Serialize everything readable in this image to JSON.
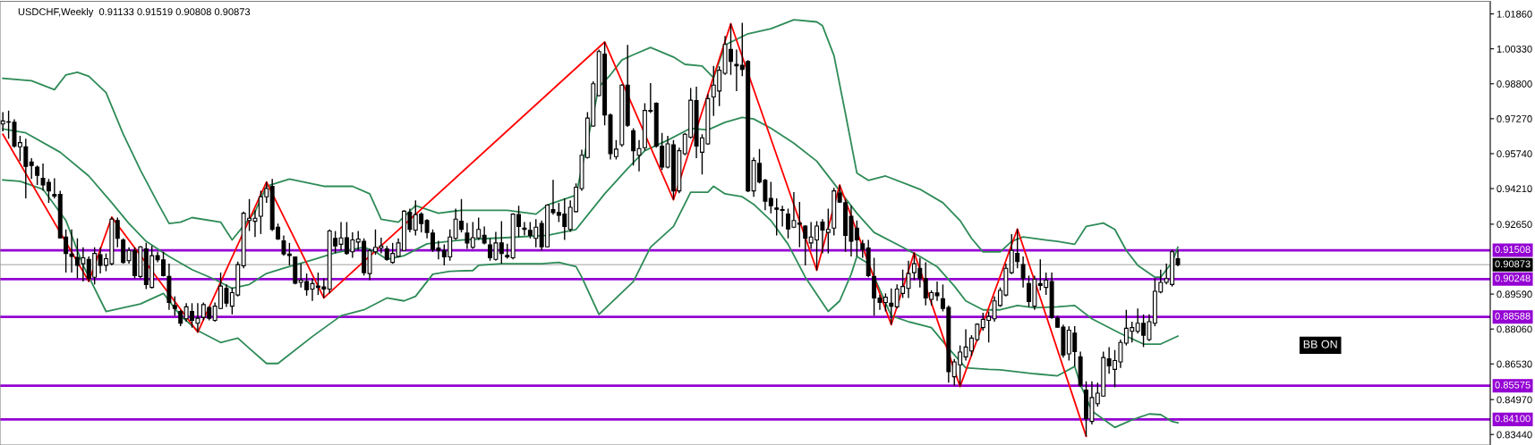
{
  "chart_data": {
    "type": "candlestick",
    "title": "USDCHF,Weekly  0.91133 0.91519 0.90808 0.90873",
    "color": "#000000",
    "categories": [
      null,
      null,
      null,
      null,
      null,
      null,
      null,
      null,
      null,
      null,
      null,
      null,
      null,
      null,
      null,
      null,
      null,
      null,
      null,
      null,
      null,
      null,
      null,
      null,
      null,
      null,
      null,
      null,
      null,
      null,
      null,
      null,
      null,
      null,
      null,
      null,
      null,
      null,
      null,
      null,
      null,
      null,
      null,
      null,
      null,
      null,
      null,
      null,
      null,
      null,
      null,
      null,
      null,
      null,
      null,
      null,
      null,
      null,
      null,
      null,
      null,
      null,
      null,
      null,
      null,
      null,
      null,
      null,
      null,
      null,
      null,
      null,
      null,
      null,
      null,
      null,
      null,
      null,
      null,
      null,
      null,
      null,
      null,
      null,
      null,
      null,
      null,
      null,
      null,
      null,
      null,
      null,
      null,
      null,
      null,
      null,
      null,
      null,
      null,
      null,
      null,
      null,
      null,
      null,
      null,
      null,
      null,
      null,
      null,
      null,
      null,
      null,
      null,
      null,
      null,
      null,
      null,
      null,
      null,
      null,
      null,
      null,
      null,
      null,
      null,
      null,
      null,
      null,
      null,
      null,
      null,
      null,
      null,
      null,
      null,
      null,
      null,
      null,
      null,
      null,
      null,
      null,
      null,
      null,
      null,
      null,
      null,
      null,
      null,
      null,
      null,
      null,
      null,
      null,
      null,
      null,
      null,
      null,
      null,
      null,
      null,
      null,
      null,
      null,
      null,
      null,
      null,
      null,
      null,
      null,
      null,
      null,
      null,
      null,
      null,
      null,
      null,
      null,
      null,
      null,
      null,
      null,
      null,
      null,
      null,
      null,
      null,
      null,
      null,
      null,
      null,
      null,
      null,
      null,
      null,
      null,
      null,
      null,
      null,
      null,
      null,
      null,
      null,
      null,
      null,
      null,
      null,
      null,
      null,
      null,
      null,
      null,
      null,
      null,
      null,
      null,
      null,
      null,
      null,
      null,
      null,
      null,
      null,
      null,
      null,
      null,
      null,
      null,
      null,
      null,
      null,
      null,
      null,
      null,
      null,
      null,
      null,
      null,
      null,
      null,
      null,
      null,
      null,
      null,
      null,
      null,
      null,
      null,
      null,
      null,
      null,
      null,
      null,
      null,
      null,
      null,
      null,
      null,
      null,
      null
    ],
    "ohlc": [
      [
        0.9704,
        0.9756,
        0.9672,
        0.9717
      ],
      [
        0.9713,
        0.9763,
        0.9639,
        0.9712
      ],
      [
        0.9711,
        0.9724,
        0.96,
        0.9607
      ],
      [
        0.9604,
        0.9652,
        0.9541,
        0.9622
      ],
      [
        0.9604,
        0.9639,
        0.9378,
        0.9518
      ],
      [
        0.9537,
        0.9554,
        0.9463,
        0.9522
      ],
      [
        0.9515,
        0.9522,
        0.9437,
        0.9479
      ],
      [
        0.9466,
        0.9531,
        0.9411,
        0.9437
      ],
      [
        0.9448,
        0.9463,
        0.9359,
        0.9411
      ],
      [
        0.9395,
        0.9466,
        0.9378,
        0.9388
      ],
      [
        0.9395,
        0.9411,
        0.9203,
        0.9205
      ],
      [
        0.9209,
        0.9242,
        0.9053,
        0.9137
      ],
      [
        0.9134,
        0.9242,
        0.9053,
        0.9124
      ],
      [
        0.912,
        0.9203,
        0.9027,
        0.9085
      ],
      [
        0.9092,
        0.9164,
        0.9014,
        0.9118
      ],
      [
        0.9111,
        0.9124,
        0.9014,
        0.9027
      ],
      [
        0.9033,
        0.9164,
        0.9001,
        0.9137
      ],
      [
        0.9131,
        0.9164,
        0.9049,
        0.9085
      ],
      [
        0.9085,
        0.9137,
        0.9059,
        0.9114
      ],
      [
        0.9092,
        0.9296,
        0.9085,
        0.9287
      ],
      [
        0.9281,
        0.9294,
        0.9164,
        0.9203
      ],
      [
        0.9196,
        0.9203,
        0.9092,
        0.9098
      ],
      [
        0.9105,
        0.9164,
        0.9092,
        0.915
      ],
      [
        0.915,
        0.9164,
        0.9027,
        0.904
      ],
      [
        0.9036,
        0.917,
        0.9027,
        0.9166
      ],
      [
        0.9157,
        0.9183,
        0.8981,
        0.9001
      ],
      [
        0.8988,
        0.917,
        0.8984,
        0.9127
      ],
      [
        0.9127,
        0.9144,
        0.9098,
        0.9109
      ],
      [
        0.9109,
        0.9144,
        0.9036,
        0.904
      ],
      [
        0.9036,
        0.9092,
        0.889,
        0.8922
      ],
      [
        0.8909,
        0.8949,
        0.8864,
        0.8896
      ],
      [
        0.8883,
        0.889,
        0.8818,
        0.8831
      ],
      [
        0.8851,
        0.8919,
        0.8838,
        0.8903
      ],
      [
        0.8883,
        0.8919,
        0.8812,
        0.8844
      ],
      [
        0.8831,
        0.8919,
        0.8792,
        0.8853
      ],
      [
        0.8857,
        0.8922,
        0.8844,
        0.8913
      ],
      [
        0.89,
        0.8906,
        0.8844,
        0.8853
      ],
      [
        0.8844,
        0.8922,
        0.8838,
        0.8906
      ],
      [
        0.8896,
        0.9053,
        0.8893,
        0.8994
      ],
      [
        0.8984,
        0.9001,
        0.8903,
        0.8919
      ],
      [
        0.8906,
        0.8988,
        0.887,
        0.8965
      ],
      [
        0.8955,
        0.9101,
        0.8949,
        0.9088
      ],
      [
        0.9083,
        0.932,
        0.9072,
        0.9313
      ],
      [
        0.9281,
        0.9375,
        0.9235,
        0.9291
      ],
      [
        0.9278,
        0.9326,
        0.9209,
        0.9291
      ],
      [
        0.93,
        0.9411,
        0.9222,
        0.9385
      ],
      [
        0.9385,
        0.945,
        0.9359,
        0.9421
      ],
      [
        0.9431,
        0.9463,
        0.9235,
        0.9242
      ],
      [
        0.9252,
        0.9268,
        0.9196,
        0.92
      ],
      [
        0.9192,
        0.9216,
        0.9127,
        0.9135
      ],
      [
        0.9134,
        0.9183,
        0.9085,
        0.9128
      ],
      [
        0.9122,
        0.9124,
        0.9001,
        0.9007
      ],
      [
        0.901,
        0.9092,
        0.8988,
        0.902
      ],
      [
        0.9014,
        0.9049,
        0.8952,
        0.8978
      ],
      [
        0.8981,
        0.9027,
        0.8929,
        0.9005
      ],
      [
        0.8994,
        0.9053,
        0.8955,
        0.8988
      ],
      [
        0.899,
        0.9027,
        0.8942,
        0.8981
      ],
      [
        0.8981,
        0.9242,
        0.8962,
        0.9235
      ],
      [
        0.9203,
        0.9235,
        0.9137,
        0.917
      ],
      [
        0.9177,
        0.9274,
        0.915,
        0.9205
      ],
      [
        0.9206,
        0.9274,
        0.9131,
        0.9137
      ],
      [
        0.9144,
        0.9229,
        0.9118,
        0.9196
      ],
      [
        0.9187,
        0.9235,
        0.915,
        0.92
      ],
      [
        0.919,
        0.9203,
        0.904,
        0.9053
      ],
      [
        0.9049,
        0.9157,
        0.902,
        0.9148
      ],
      [
        0.9144,
        0.9242,
        0.9131,
        0.9164
      ],
      [
        0.9161,
        0.9206,
        0.9137,
        0.9169
      ],
      [
        0.9157,
        0.917,
        0.9105,
        0.9111
      ],
      [
        0.9098,
        0.9183,
        0.9092,
        0.9137
      ],
      [
        0.9124,
        0.9203,
        0.9122,
        0.9183
      ],
      [
        0.915,
        0.9326,
        0.9148,
        0.9322
      ],
      [
        0.9317,
        0.9333,
        0.9229,
        0.9242
      ],
      [
        0.9239,
        0.9369,
        0.9216,
        0.9307
      ],
      [
        0.9309,
        0.9317,
        0.9229,
        0.9268
      ],
      [
        0.9281,
        0.9287,
        0.9203,
        0.9229
      ],
      [
        0.9226,
        0.9242,
        0.9144,
        0.9153
      ],
      [
        0.9161,
        0.9192,
        0.9111,
        0.915
      ],
      [
        0.915,
        0.9177,
        0.9085,
        0.9122
      ],
      [
        0.9122,
        0.9242,
        0.9105,
        0.9209
      ],
      [
        0.9203,
        0.9333,
        0.9196,
        0.9287
      ],
      [
        0.9278,
        0.9375,
        0.9229,
        0.9242
      ],
      [
        0.9226,
        0.927,
        0.9157,
        0.9183
      ],
      [
        0.9164,
        0.9274,
        0.9157,
        0.9206
      ],
      [
        0.9205,
        0.9294,
        0.9196,
        0.9242
      ],
      [
        0.9216,
        0.9255,
        0.9177,
        0.9183
      ],
      [
        0.9174,
        0.9203,
        0.9105,
        0.9118
      ],
      [
        0.9111,
        0.9231,
        0.9105,
        0.9183
      ],
      [
        0.9183,
        0.9278,
        0.9092,
        0.9137
      ],
      [
        0.9128,
        0.9179,
        0.9114,
        0.9122
      ],
      [
        0.9118,
        0.9313,
        0.9111,
        0.9309
      ],
      [
        0.9307,
        0.9346,
        0.9209,
        0.9255
      ],
      [
        0.9248,
        0.9274,
        0.9216,
        0.9242
      ],
      [
        0.9238,
        0.9274,
        0.9203,
        0.9216
      ],
      [
        0.9203,
        0.9287,
        0.9164,
        0.9252
      ],
      [
        0.9268,
        0.9281,
        0.915,
        0.9166
      ],
      [
        0.9166,
        0.9352,
        0.9164,
        0.9349
      ],
      [
        0.9329,
        0.9459,
        0.9307,
        0.9316
      ],
      [
        0.9316,
        0.9359,
        0.9274,
        0.9304
      ],
      [
        0.9309,
        0.9378,
        0.9196,
        0.9255
      ],
      [
        0.9242,
        0.9369,
        0.9231,
        0.9339
      ],
      [
        0.932,
        0.9444,
        0.9317,
        0.9427
      ],
      [
        0.9421,
        0.9591,
        0.9411,
        0.9567
      ],
      [
        0.9557,
        0.9756,
        0.9552,
        0.973
      ],
      [
        0.9695,
        0.9891,
        0.9691,
        0.988
      ],
      [
        0.9828,
        1.003,
        0.9825,
        1.0021
      ],
      [
        1.001,
        1.0063,
        0.9698,
        0.9743
      ],
      [
        0.9743,
        0.975,
        0.9548,
        0.9574
      ],
      [
        0.9561,
        0.9633,
        0.9548,
        0.9594
      ],
      [
        0.9613,
        0.9878,
        0.9604,
        0.9874
      ],
      [
        0.9874,
        1.005,
        0.9691,
        0.9698
      ],
      [
        0.9674,
        0.9685,
        0.9522,
        0.9587
      ],
      [
        0.9567,
        0.9633,
        0.9496,
        0.9596
      ],
      [
        0.96,
        0.9795,
        0.9587,
        0.9763
      ],
      [
        0.9763,
        0.9883,
        0.9752,
        0.976
      ],
      [
        0.9795,
        0.9799,
        0.96,
        0.9607
      ],
      [
        0.9607,
        0.9665,
        0.9502,
        0.9515
      ],
      [
        0.9515,
        0.9652,
        0.9509,
        0.9617
      ],
      [
        0.9613,
        0.9633,
        0.9372,
        0.9411
      ],
      [
        0.9411,
        0.96,
        0.9401,
        0.9587
      ],
      [
        0.9574,
        0.9665,
        0.9567,
        0.9659
      ],
      [
        0.9646,
        0.9861,
        0.9639,
        0.9808
      ],
      [
        0.9806,
        0.9867,
        0.9554,
        0.9607
      ],
      [
        0.958,
        0.9659,
        0.9483,
        0.9643
      ],
      [
        0.9617,
        0.9835,
        0.9613,
        0.9815
      ],
      [
        0.9822,
        0.9958,
        0.9739,
        0.9874
      ],
      [
        0.9848,
        0.9956,
        0.9782,
        0.9939
      ],
      [
        0.9926,
        1.0089,
        0.9919,
        1.0052
      ],
      [
        1.003,
        1.0143,
        0.9919,
        0.9978
      ],
      [
        0.9965,
        1.003,
        0.9848,
        0.9958
      ],
      [
        0.9961,
        1.0147,
        0.9913,
        0.9943
      ],
      [
        0.9978,
        0.9984,
        0.9405,
        0.9411
      ],
      [
        0.9411,
        0.9557,
        0.9385,
        0.9544
      ],
      [
        0.9531,
        0.9594,
        0.9444,
        0.945
      ],
      [
        0.9457,
        0.9463,
        0.9326,
        0.9366
      ],
      [
        0.9378,
        0.945,
        0.9313,
        0.9346
      ],
      [
        0.9336,
        0.9378,
        0.9216,
        0.933
      ],
      [
        0.9329,
        0.9346,
        0.9255,
        0.9325
      ],
      [
        0.9309,
        0.9333,
        0.9203,
        0.9244
      ],
      [
        0.9252,
        0.9405,
        0.9248,
        0.9281
      ],
      [
        0.927,
        0.9362,
        0.9164,
        0.9265
      ],
      [
        0.9257,
        0.9261,
        0.9085,
        0.9203
      ],
      [
        0.9183,
        0.9274,
        0.9157,
        0.9209
      ],
      [
        0.9196,
        0.9278,
        0.9063,
        0.9257
      ],
      [
        0.9274,
        0.9287,
        0.9137,
        0.9239
      ],
      [
        0.9229,
        0.9333,
        0.9137,
        0.9242
      ],
      [
        0.9248,
        0.9424,
        0.9216,
        0.9411
      ],
      [
        0.9401,
        0.9437,
        0.9359,
        0.9362
      ],
      [
        0.9359,
        0.9372,
        0.9144,
        0.9216
      ],
      [
        0.93,
        0.9346,
        0.9124,
        0.919
      ],
      [
        0.9248,
        0.9281,
        0.9124,
        0.9196
      ],
      [
        0.9179,
        0.9196,
        0.9118,
        0.9153
      ],
      [
        0.9161,
        0.9196,
        0.9033,
        0.904
      ],
      [
        0.9036,
        0.9118,
        0.8864,
        0.8942
      ],
      [
        0.8942,
        0.8955,
        0.889,
        0.8922
      ],
      [
        0.8922,
        0.8962,
        0.8883,
        0.8945
      ],
      [
        0.8919,
        0.8984,
        0.8825,
        0.8906
      ],
      [
        0.8903,
        0.9001,
        0.8896,
        0.8981
      ],
      [
        0.8962,
        0.9066,
        0.8942,
        0.8992
      ],
      [
        0.8984,
        0.9105,
        0.8942,
        0.9049
      ],
      [
        0.9053,
        0.914,
        0.902,
        0.9092
      ],
      [
        0.9072,
        0.9118,
        0.8988,
        0.9027
      ],
      [
        0.9027,
        0.9098,
        0.8909,
        0.8942
      ],
      [
        0.8936,
        0.8975,
        0.8909,
        0.8965
      ],
      [
        0.8964,
        0.9014,
        0.8929,
        0.8952
      ],
      [
        0.8939,
        0.9001,
        0.8883,
        0.8896
      ],
      [
        0.89,
        0.8909,
        0.8571,
        0.8619
      ],
      [
        0.8597,
        0.8675,
        0.8558,
        0.8662
      ],
      [
        0.8649,
        0.8734,
        0.8554,
        0.8705
      ],
      [
        0.8684,
        0.8805,
        0.8668,
        0.8727
      ],
      [
        0.871,
        0.8779,
        0.8688,
        0.8766
      ],
      [
        0.876,
        0.8831,
        0.8753,
        0.8827
      ],
      [
        0.8812,
        0.8877,
        0.8799,
        0.8848
      ],
      [
        0.8844,
        0.8883,
        0.8747,
        0.8861
      ],
      [
        0.8851,
        0.8949,
        0.8838,
        0.8929
      ],
      [
        0.8909,
        0.8988,
        0.8903,
        0.8975
      ],
      [
        0.8955,
        0.9092,
        0.8949,
        0.9072
      ],
      [
        0.9053,
        0.9222,
        0.9046,
        0.915
      ],
      [
        0.9137,
        0.9244,
        0.9072,
        0.9101
      ],
      [
        0.9088,
        0.9124,
        0.8988,
        0.9027
      ],
      [
        0.9005,
        0.904,
        0.8903,
        0.8926
      ],
      [
        0.8906,
        0.904,
        0.889,
        0.9023
      ],
      [
        0.9005,
        0.9111,
        0.8975,
        0.8997
      ],
      [
        0.8988,
        0.9053,
        0.8955,
        0.902
      ],
      [
        0.9014,
        0.9053,
        0.8851,
        0.8857
      ],
      [
        0.8853,
        0.8864,
        0.8812,
        0.8814
      ],
      [
        0.8814,
        0.8825,
        0.8681,
        0.8692
      ],
      [
        0.8697,
        0.8818,
        0.8668,
        0.8801
      ],
      [
        0.8788,
        0.8818,
        0.8642,
        0.8707
      ],
      [
        0.8684,
        0.8707,
        0.8551,
        0.8558
      ],
      [
        0.8538,
        0.8577,
        0.8336,
        0.8414
      ],
      [
        0.8401,
        0.8577,
        0.8388,
        0.8506
      ],
      [
        0.8479,
        0.8571,
        0.8466,
        0.8525
      ],
      [
        0.8512,
        0.8707,
        0.8509,
        0.8681
      ],
      [
        0.8675,
        0.8727,
        0.861,
        0.8645
      ],
      [
        0.8629,
        0.8714,
        0.8551,
        0.8668
      ],
      [
        0.8662,
        0.876,
        0.8636,
        0.8747
      ],
      [
        0.8744,
        0.889,
        0.8734,
        0.8809
      ],
      [
        0.8796,
        0.8838,
        0.8747,
        0.8812
      ],
      [
        0.8796,
        0.8896,
        0.8786,
        0.8831
      ],
      [
        0.8831,
        0.887,
        0.8727,
        0.8779
      ],
      [
        0.876,
        0.887,
        0.8753,
        0.8838
      ],
      [
        0.8831,
        0.9027,
        0.8818,
        0.8971
      ],
      [
        0.8968,
        0.9066,
        0.8962,
        0.901
      ],
      [
        0.901,
        0.9092,
        0.9001,
        0.9027
      ],
      [
        0.9001,
        0.9153,
        0.8992,
        0.9144
      ],
      [
        0.91133,
        0.91519,
        0.90808,
        0.90873
      ],
      null,
      null,
      null,
      null,
      null,
      null,
      null,
      null,
      null,
      null,
      null,
      null,
      null,
      null,
      null,
      null,
      null,
      null,
      null,
      null,
      null,
      null,
      null,
      null,
      null,
      null,
      null,
      null,
      null,
      null,
      null,
      null,
      null,
      null,
      null,
      null,
      null,
      null,
      null,
      null,
      null,
      null,
      null,
      null,
      null,
      null,
      null,
      null,
      null,
      null,
      null,
      null,
      null,
      null
    ],
    "series": [
      {
        "type": "line",
        "color": "#2e8b57",
        "values": [
          0.9904,
          null,
          null,
          null,
          null,
          0.9893,
          null,
          null,
          null,
          0.9854,
          null,
          0.9919,
          null,
          0.993,
          null,
          0.9913,
          null,
          null,
          0.9841,
          null,
          null,
          0.9659,
          null,
          null,
          0.9502,
          null,
          null,
          0.9359,
          null,
          0.9268,
          null,
          0.9274,
          null,
          0.9294,
          null,
          null,
          null,
          null,
          0.9274,
          null,
          0.9196,
          null,
          null,
          null,
          0.932,
          null,
          0.9431,
          null,
          null,
          null,
          0.9463,
          null,
          null,
          null,
          null,
          null,
          0.9431,
          null,
          null,
          null,
          null,
          0.9431,
          null,
          null,
          0.9398,
          null,
          0.9287,
          null,
          null,
          0.9274,
          null,
          null,
          0.9346,
          null,
          null,
          null,
          0.9313,
          null,
          null,
          null,
          0.9326,
          null,
          null,
          null,
          null,
          null,
          null,
          null,
          0.9326,
          null,
          null,
          null,
          null,
          0.9309,
          null,
          0.9349,
          null,
          null,
          null,
          null,
          0.9392,
          null,
          null,
          null,
          0.9867,
          null,
          0.9919,
          null,
          0.9984,
          null,
          1.0007,
          null,
          null,
          1.0039,
          null,
          null,
          null,
          0.9997,
          null,
          0.9965,
          null,
          null,
          0.9958,
          null,
          0.9906,
          null,
          1.005,
          null,
          null,
          null,
          1.0099,
          null,
          null,
          null,
          1.0121,
          null,
          null,
          null,
          1.016,
          null,
          null,
          null,
          1.0151,
          1.0134,
          null,
          1.0004,
          null,
          0.975,
          null,
          0.9489,
          null,
          0.9457,
          null,
          null,
          0.9476,
          null,
          null,
          null,
          null,
          null,
          0.9418,
          null,
          null,
          null,
          0.9359,
          null,
          null,
          0.9281,
          null,
          0.9203,
          null,
          0.9144,
          null,
          null,
          0.9144,
          null,
          0.919,
          null,
          0.9209,
          null,
          null,
          null,
          0.9196,
          null,
          0.919,
          null,
          null,
          0.9177,
          null,
          0.9255,
          null,
          null,
          0.927,
          null,
          0.9242,
          null,
          0.915,
          null,
          0.9085,
          null,
          null,
          0.9033,
          0.9033,
          null,
          0.9098,
          0.9164,
          null,
          null,
          null,
          null,
          null,
          null,
          null,
          null,
          null,
          null,
          null,
          null,
          null,
          null,
          null,
          null,
          null,
          null,
          null,
          null,
          null,
          null,
          null,
          null,
          null,
          null,
          null,
          null,
          null,
          null,
          null,
          null,
          null,
          null,
          null,
          null,
          null,
          null,
          null,
          null,
          null,
          null,
          null,
          null,
          null,
          null,
          null,
          null,
          null,
          null,
          null,
          null,
          null,
          null
        ]
      },
      {
        "type": "line",
        "color": "#2e8b57",
        "values": [
          0.9682,
          null,
          null,
          null,
          0.9665,
          null,
          null,
          null,
          null,
          null,
          0.958,
          null,
          null,
          null,
          null,
          0.9476,
          null,
          null,
          null,
          0.9359,
          null,
          null,
          0.9268,
          null,
          null,
          0.919,
          null,
          null,
          null,
          0.9124,
          null,
          null,
          null,
          0.9066,
          null,
          null,
          null,
          0.9023,
          null,
          null,
          0.8984,
          null,
          null,
          0.9001,
          null,
          null,
          0.9049,
          null,
          null,
          0.9072,
          null,
          null,
          null,
          null,
          0.9109,
          null,
          null,
          null,
          0.914,
          null,
          null,
          null,
          null,
          0.9164,
          null,
          0.9144,
          null,
          0.9111,
          null,
          null,
          0.9127,
          null,
          null,
          null,
          0.9179,
          null,
          null,
          null,
          null,
          null,
          0.9196,
          null,
          null,
          null,
          null,
          0.9203,
          null,
          0.9205,
          null,
          null,
          null,
          null,
          null,
          null,
          null,
          0.9216,
          null,
          null,
          null,
          null,
          0.9242,
          null,
          null,
          null,
          null,
          0.9398,
          null,
          null,
          null,
          0.9509,
          null,
          null,
          0.9587,
          null,
          null,
          null,
          0.9633,
          null,
          null,
          null,
          0.9685,
          null,
          null,
          0.9678,
          null,
          null,
          0.9711,
          null,
          null,
          0.9733,
          null,
          0.9726,
          null,
          null,
          0.9685,
          null,
          null,
          null,
          0.962,
          null,
          null,
          null,
          0.9541,
          null,
          null,
          null,
          0.9411,
          null,
          null,
          0.9313,
          null,
          null,
          0.9229,
          null,
          null,
          null,
          null,
          0.9164,
          null,
          null,
          0.9124,
          null,
          null,
          0.9079,
          null,
          null,
          0.8994,
          null,
          0.8929,
          null,
          null,
          0.889,
          null,
          null,
          0.889,
          null,
          null,
          0.8909,
          null,
          null,
          0.8899,
          null,
          null,
          null,
          0.8903,
          null,
          null,
          0.8909,
          null,
          null,
          0.8851,
          null,
          null,
          null,
          null,
          0.8786,
          null,
          null,
          null,
          0.874,
          null,
          null,
          0.874,
          null,
          null,
          0.8775,
          null,
          null,
          null,
          null,
          null,
          null,
          null,
          null,
          null,
          null,
          null,
          null,
          null,
          null,
          null,
          null,
          null,
          null,
          null,
          null,
          null,
          null,
          null,
          null,
          null,
          null,
          null,
          null,
          null,
          null,
          null,
          null,
          null,
          null,
          null,
          null,
          null,
          null,
          null,
          null,
          null,
          null,
          null,
          null,
          null,
          null,
          null,
          null,
          null,
          null,
          null,
          null,
          null,
          null
        ]
      },
      {
        "type": "line",
        "color": "#2e8b57",
        "values": [
          0.9459,
          null,
          null,
          0.9453,
          null,
          null,
          null,
          0.9418,
          null,
          null,
          null,
          0.9281,
          null,
          null,
          0.9085,
          null,
          null,
          null,
          0.8883,
          null,
          null,
          null,
          null,
          null,
          0.8916,
          null,
          null,
          null,
          0.8962,
          null,
          null,
          0.8864,
          null,
          null,
          0.8799,
          null,
          null,
          null,
          0.8747,
          null,
          null,
          0.8766,
          null,
          0.8721,
          null,
          null,
          0.8655,
          null,
          0.8655,
          null,
          null,
          null,
          null,
          null,
          0.8773,
          null,
          null,
          null,
          null,
          0.8864,
          null,
          null,
          null,
          0.889,
          null,
          null,
          null,
          0.8942,
          null,
          null,
          0.8929,
          null,
          0.8949,
          null,
          null,
          0.9046,
          null,
          null,
          0.9059,
          null,
          null,
          null,
          0.9062,
          0.9085,
          null,
          null,
          null,
          0.9092,
          null,
          null,
          null,
          null,
          null,
          null,
          0.9092,
          null,
          null,
          0.9098,
          null,
          null,
          0.9079,
          0.9033,
          null,
          null,
          0.887,
          null,
          null,
          null,
          null,
          null,
          0.9014,
          null,
          null,
          0.9164,
          null,
          null,
          null,
          0.9255,
          null,
          null,
          0.9405,
          null,
          null,
          0.9405,
          0.9431,
          null,
          0.9398,
          null,
          null,
          0.9385,
          null,
          0.9352,
          null,
          null,
          0.9281,
          null,
          null,
          0.9177,
          null,
          null,
          0.9033,
          null,
          null,
          null,
          0.8883,
          null,
          0.8929,
          null,
          0.9046,
          0.9124,
          null,
          0.9092,
          null,
          null,
          null,
          0.8864,
          null,
          null,
          0.8838,
          null,
          null,
          null,
          0.8812,
          null,
          null,
          0.8721,
          null,
          null,
          0.8636,
          null,
          null,
          null,
          0.8629,
          null,
          0.8627,
          null,
          null,
          null,
          null,
          null,
          0.861,
          null,
          null,
          null,
          0.8601,
          null,
          null,
          0.8642,
          0.8564,
          null,
          0.8447,
          null,
          null,
          null,
          0.8375,
          null,
          null,
          0.8408,
          null,
          null,
          0.8434,
          null,
          0.8431,
          null,
          0.8401,
          0.8395,
          null,
          null,
          null,
          null,
          null,
          null,
          null,
          null,
          null,
          null,
          null,
          null,
          null,
          null,
          null,
          null,
          null,
          null,
          null,
          null,
          null,
          null,
          null,
          null,
          null,
          null,
          null,
          null,
          null,
          null,
          null,
          null,
          null,
          null,
          null,
          null,
          null,
          null,
          null,
          null,
          null,
          null,
          null,
          null,
          null,
          null,
          null,
          null,
          null,
          null,
          null,
          null,
          null,
          null
        ]
      },
      {
        "type": "line",
        "color": "#ff0000",
        "values": [
          0.9659,
          null,
          null,
          null,
          null,
          null,
          null,
          null,
          null,
          null,
          null,
          null,
          null,
          null,
          null,
          0.9014,
          null,
          null,
          null,
          0.9296,
          null,
          null,
          null,
          null,
          null,
          null,
          null,
          null,
          null,
          null,
          null,
          null,
          null,
          null,
          0.8792,
          null,
          null,
          null,
          null,
          null,
          null,
          null,
          null,
          null,
          null,
          null,
          0.945,
          null,
          null,
          null,
          null,
          null,
          null,
          null,
          null,
          null,
          0.8942,
          null,
          null,
          null,
          null,
          null,
          null,
          null,
          null,
          null,
          null,
          null,
          null,
          null,
          null,
          null,
          null,
          null,
          null,
          null,
          null,
          null,
          null,
          null,
          null,
          null,
          null,
          null,
          null,
          null,
          null,
          null,
          null,
          null,
          null,
          null,
          null,
          null,
          null,
          null,
          null,
          null,
          null,
          null,
          null,
          null,
          null,
          null,
          null,
          1.0063,
          null,
          null,
          null,
          null,
          null,
          null,
          null,
          null,
          null,
          null,
          null,
          0.9372,
          null,
          null,
          null,
          null,
          null,
          null,
          null,
          null,
          null,
          1.0143,
          null,
          null,
          null,
          null,
          null,
          null,
          null,
          null,
          null,
          null,
          null,
          null,
          null,
          null,
          0.9063,
          null,
          null,
          null,
          0.9437,
          null,
          null,
          null,
          null,
          null,
          null,
          null,
          null,
          0.8825,
          null,
          null,
          null,
          0.914,
          null,
          null,
          null,
          null,
          null,
          null,
          null,
          0.8554,
          null,
          null,
          null,
          null,
          null,
          null,
          null,
          null,
          null,
          0.9244,
          null,
          null,
          null,
          null,
          null,
          null,
          null,
          null,
          null,
          null,
          null,
          0.8336,
          null,
          null,
          null,
          null,
          null,
          null,
          null,
          null,
          null,
          null,
          null,
          null,
          null,
          null,
          null,
          null,
          null,
          null,
          null,
          null,
          null,
          null,
          null,
          null,
          null,
          null,
          null,
          null,
          null,
          null,
          null,
          null,
          null,
          null,
          null,
          null,
          null,
          null,
          null,
          null,
          null,
          null,
          null,
          null,
          null,
          null,
          null,
          null,
          null,
          null,
          null,
          null,
          null,
          null,
          null,
          null,
          null,
          null,
          null,
          null,
          null,
          null,
          null,
          null,
          null,
          null,
          null,
          null,
          null,
          null
        ]
      }
    ],
    "ylim": [
      0.8298,
      1.0241
    ],
    "yticks": [
      {
        "value": 1.0186,
        "label": "1.01860"
      },
      {
        "value": 1.0033,
        "label": "1.00330"
      },
      {
        "value": 0.988,
        "label": "0.98800"
      },
      {
        "value": 0.9727,
        "label": "0.97270"
      },
      {
        "value": 0.9574,
        "label": "0.95740"
      },
      {
        "value": 0.9421,
        "label": "0.94210"
      },
      {
        "value": 0.9265,
        "label": "0.92650"
      },
      {
        "value": 0.8959,
        "label": "0.89590"
      },
      {
        "value": 0.8806,
        "label": "0.88060"
      },
      {
        "value": 0.8653,
        "label": "0.86530"
      },
      {
        "value": 0.8497,
        "label": "0.84970"
      },
      {
        "value": 0.8344,
        "label": "0.83440"
      }
    ],
    "ref_lines": [
      {
        "axis": "y",
        "value": 0.91508,
        "label": "0.91508",
        "color": "#9400d3"
      },
      {
        "axis": "y",
        "value": 0.90248,
        "label": "0.90248",
        "color": "#9400d3"
      },
      {
        "axis": "y",
        "value": 0.88588,
        "label": "0.88588",
        "color": "#9400d3"
      },
      {
        "axis": "y",
        "value": 0.85575,
        "label": "0.85575",
        "color": "#9400d3"
      },
      {
        "axis": "y",
        "value": 0.841,
        "label": "0.84100",
        "color": "#9400d3"
      },
      {
        "axis": "y",
        "value": 0.90873,
        "label": "0.90873",
        "color": "#c0c0c0"
      }
    ],
    "annotations": [
      "BB ON"
    ],
    "tick_labels": "y",
    "grid": false
  }
}
